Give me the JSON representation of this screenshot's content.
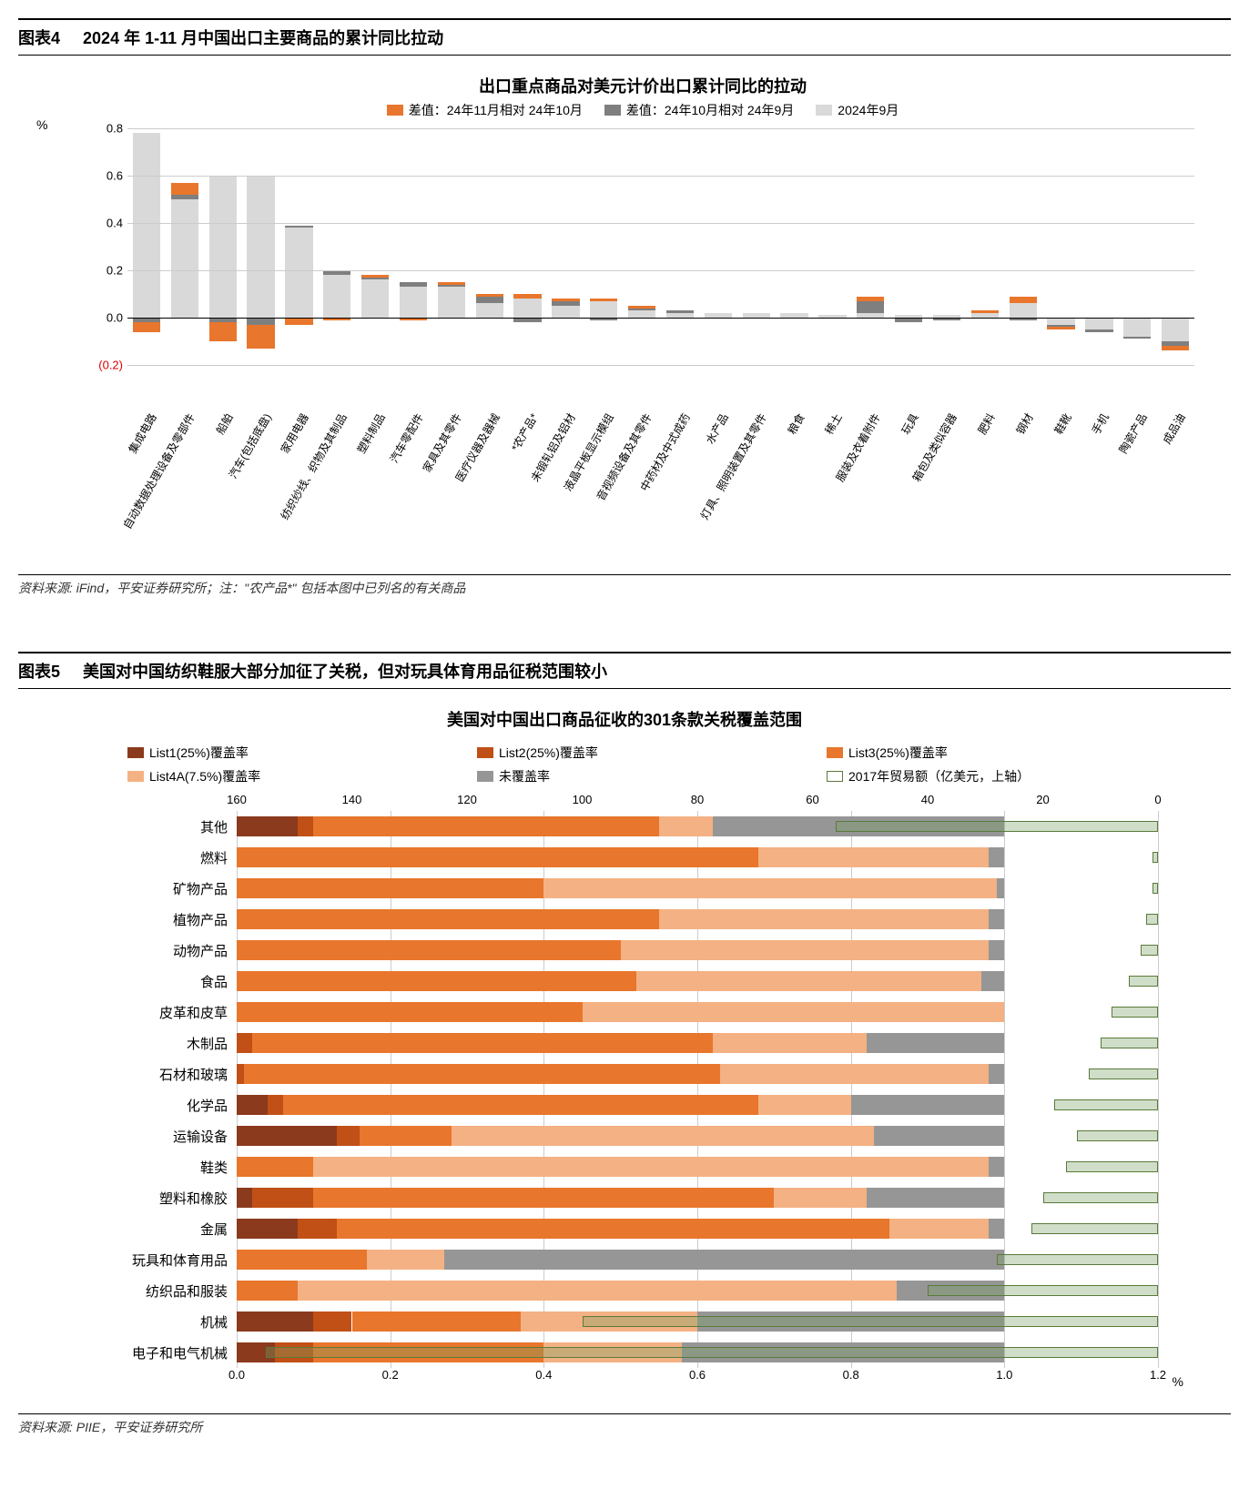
{
  "fig4": {
    "header_num": "图表4",
    "header_title": "2024 年 1-11 月中国出口主要商品的累计同比拉动",
    "chart_title": "出口重点商品对美元计价出口累计同比的拉动",
    "unit": "%",
    "legend": [
      {
        "label": "差值：24年11月相对 24年10月",
        "color": "#e8762c"
      },
      {
        "label": "差值：24年10月相对 24年9月",
        "color": "#7f7f7f"
      },
      {
        "label": "2024年9月",
        "color": "#d9d9d9"
      }
    ],
    "ylim": [
      -0.2,
      0.8
    ],
    "ytick_step": 0.2,
    "yticks": [
      -0.2,
      0.0,
      0.2,
      0.4,
      0.6,
      0.8
    ],
    "neg_tick_format": "(0.2)",
    "categories": [
      "集成电路",
      "自动数据处理设备及零部件",
      "船舶",
      "汽车(包括底盘)",
      "家用电器",
      "纺织纱线、织物及其制品",
      "塑料制品",
      "汽车零配件",
      "家具及其零件",
      "医疗仪器及器械",
      "*农产品*",
      "未锻轧铝及铝材",
      "液晶平板显示模组",
      "音视频设备及其零件",
      "中药材及中式成药",
      "水产品",
      "灯具、照明装置及其零件",
      "粮食",
      "稀土",
      "服装及衣着附件",
      "玩具",
      "箱包及类似容器",
      "肥料",
      "钢材",
      "鞋靴",
      "手机",
      "陶瓷产品",
      "成品油"
    ],
    "series_sep": [
      0.78,
      0.5,
      0.6,
      0.6,
      0.38,
      0.18,
      0.16,
      0.13,
      0.13,
      0.06,
      0.08,
      0.05,
      0.07,
      0.03,
      0.02,
      0.02,
      0.02,
      0.02,
      0.01,
      0.02,
      0.01,
      0.01,
      0.02,
      0.06,
      -0.03,
      -0.05,
      -0.08,
      -0.1
    ],
    "series_oct": [
      -0.02,
      0.02,
      -0.02,
      -0.03,
      0.01,
      0.02,
      0.01,
      0.02,
      0.01,
      0.03,
      -0.02,
      0.02,
      -0.01,
      0.01,
      0.01,
      0.0,
      0.0,
      0.0,
      0.0,
      0.05,
      -0.02,
      -0.01,
      0.0,
      -0.01,
      -0.01,
      -0.01,
      -0.01,
      -0.02
    ],
    "series_nov": [
      -0.04,
      0.05,
      -0.08,
      -0.1,
      -0.03,
      -0.01,
      0.01,
      -0.01,
      0.01,
      0.01,
      0.02,
      0.01,
      0.01,
      0.01,
      0.0,
      0.0,
      0.0,
      0.0,
      0.0,
      0.02,
      0.0,
      0.0,
      0.01,
      0.03,
      -0.01,
      0.0,
      0.0,
      -0.02
    ],
    "footer": "资料来源: iFind，平安证券研究所；注：\"农产品*\" 包括本图中已列名的有关商品",
    "colors": {
      "sep": "#d9d9d9",
      "oct": "#7f7f7f",
      "nov": "#e8762c"
    },
    "grid_color": "#cccccc"
  },
  "fig5": {
    "header_num": "图表5",
    "header_title": "美国对中国纺织鞋服大部分加征了关税，但对玩具体育用品征税范围较小",
    "chart_title": "美国对中国出口商品征收的301条款关税覆盖范围",
    "legend": [
      {
        "label": "List1(25%)覆盖率",
        "color": "#8b3a1e",
        "type": "fill"
      },
      {
        "label": "List2(25%)覆盖率",
        "color": "#c15016",
        "type": "fill"
      },
      {
        "label": "List3(25%)覆盖率",
        "color": "#e8762c",
        "type": "fill"
      },
      {
        "label": "List4A(7.5%)覆盖率",
        "color": "#f4b183",
        "type": "fill"
      },
      {
        "label": "未覆盖率",
        "color": "#969696",
        "type": "fill"
      },
      {
        "label": "2017年贸易额（亿美元，上轴）",
        "color": "#5a7a3a",
        "type": "outline"
      }
    ],
    "top_axis": {
      "min": 0,
      "max": 160,
      "ticks": [
        160,
        140,
        120,
        100,
        80,
        60,
        40,
        20,
        0
      ],
      "reversed": true
    },
    "bottom_axis": {
      "min": 0,
      "max": 1.2,
      "ticks": [
        0.0,
        0.2,
        0.4,
        0.6,
        0.8,
        1.0,
        1.2
      ],
      "label": "%"
    },
    "categories": [
      "其他",
      "燃料",
      "矿物产品",
      "植物产品",
      "动物产品",
      "食品",
      "皮革和皮草",
      "木制品",
      "石材和玻璃",
      "化学品",
      "运输设备",
      "鞋类",
      "塑料和橡胶",
      "金属",
      "玩具和体育用品",
      "纺织品和服装",
      "机械",
      "电子和电气机械"
    ],
    "stacks": [
      {
        "l1": 0.08,
        "l2": 0.02,
        "l3": 0.45,
        "l4a": 0.07,
        "un": 0.38
      },
      {
        "l1": 0.0,
        "l2": 0.0,
        "l3": 0.68,
        "l4a": 0.3,
        "un": 0.02
      },
      {
        "l1": 0.0,
        "l2": 0.0,
        "l3": 0.4,
        "l4a": 0.59,
        "un": 0.01
      },
      {
        "l1": 0.0,
        "l2": 0.0,
        "l3": 0.55,
        "l4a": 0.43,
        "un": 0.02
      },
      {
        "l1": 0.0,
        "l2": 0.0,
        "l3": 0.5,
        "l4a": 0.48,
        "un": 0.02
      },
      {
        "l1": 0.0,
        "l2": 0.0,
        "l3": 0.52,
        "l4a": 0.45,
        "un": 0.03
      },
      {
        "l1": 0.0,
        "l2": 0.0,
        "l3": 0.45,
        "l4a": 0.55,
        "un": 0.0
      },
      {
        "l1": 0.0,
        "l2": 0.02,
        "l3": 0.6,
        "l4a": 0.2,
        "un": 0.18
      },
      {
        "l1": 0.0,
        "l2": 0.01,
        "l3": 0.62,
        "l4a": 0.35,
        "un": 0.02
      },
      {
        "l1": 0.04,
        "l2": 0.02,
        "l3": 0.62,
        "l4a": 0.12,
        "un": 0.2
      },
      {
        "l1": 0.13,
        "l2": 0.03,
        "l3": 0.12,
        "l4a": 0.55,
        "un": 0.17
      },
      {
        "l1": 0.0,
        "l2": 0.0,
        "l3": 0.1,
        "l4a": 0.88,
        "un": 0.02
      },
      {
        "l1": 0.02,
        "l2": 0.08,
        "l3": 0.6,
        "l4a": 0.12,
        "un": 0.18
      },
      {
        "l1": 0.08,
        "l2": 0.05,
        "l3": 0.72,
        "l4a": 0.13,
        "un": 0.02
      },
      {
        "l1": 0.0,
        "l2": 0.0,
        "l3": 0.17,
        "l4a": 0.1,
        "un": 0.73
      },
      {
        "l1": 0.0,
        "l2": 0.0,
        "l3": 0.08,
        "l4a": 0.78,
        "un": 0.14
      },
      {
        "l1": 0.1,
        "l2": 0.05,
        "l3": 0.22,
        "l4a": 0.23,
        "un": 0.4
      },
      {
        "l1": 0.05,
        "l2": 0.05,
        "l3": 0.3,
        "l4a": 0.18,
        "un": 0.42
      }
    ],
    "trade_values": [
      56,
      1,
      1,
      2,
      3,
      5,
      8,
      10,
      12,
      18,
      14,
      16,
      20,
      22,
      28,
      40,
      100,
      155
    ],
    "colors": {
      "l1": "#8b3a1e",
      "l2": "#c15016",
      "l3": "#e8762c",
      "l4a": "#f4b183",
      "un": "#969696",
      "trade_border": "#5a7a3a",
      "trade_fill": "rgba(120,160,100,0.35)"
    },
    "footer": "资料来源: PIIE，平安证券研究所"
  }
}
